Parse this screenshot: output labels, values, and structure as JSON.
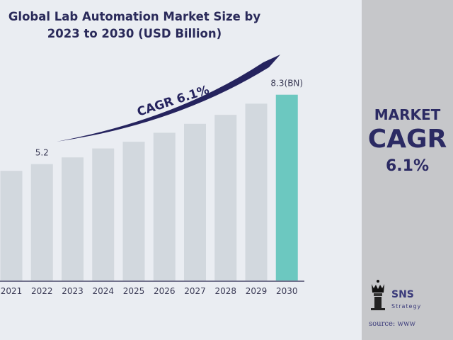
{
  "chart_data": {
    "type": "bar",
    "title": "Global Lab Automation Market Size by 2023 to 2030 (USD Billion)",
    "categories": [
      "2021",
      "2022",
      "2023",
      "2024",
      "2025",
      "2026",
      "2027",
      "2028",
      "2029",
      "2030"
    ],
    "values": [
      4.9,
      5.2,
      5.5,
      5.9,
      6.2,
      6.6,
      7.0,
      7.4,
      7.9,
      8.3
    ],
    "data_labels": {
      "2022": "5.2",
      "2030": "8.3(BN)"
    },
    "annotation": "CAGR 6.1%",
    "xlabel": "",
    "ylabel": "",
    "ylim": [
      0,
      8.3
    ],
    "grid": false,
    "colors": {
      "bar": "#d2d8de",
      "highlight": "#6cc8c0",
      "axis": "#4a4a6a",
      "arrow": "#25235e"
    }
  },
  "side": {
    "line1": "MARKET",
    "line2": "CAGR",
    "line3": "6.1%",
    "brand": "SNS",
    "brand_sub": "Strategy",
    "source": "source: www"
  }
}
